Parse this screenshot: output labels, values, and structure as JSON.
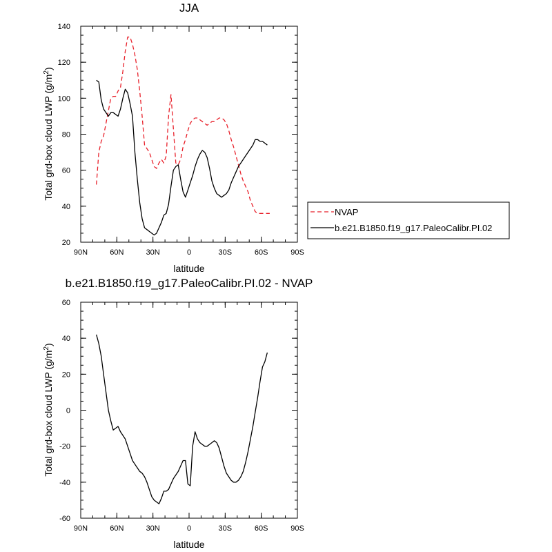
{
  "chart_data": [
    {
      "type": "line",
      "title": "JJA",
      "xlabel": "latitude",
      "ylabel": "Total grd-box cloud LWP (g/m²)",
      "ylabel_parts": {
        "pre": "Total grd-box cloud LWP (g/m",
        "sup": "2",
        "post": ")"
      },
      "xlim": [
        90,
        -90
      ],
      "ylim": [
        20,
        140
      ],
      "xticks": [
        90,
        60,
        30,
        0,
        -30,
        -60,
        -90
      ],
      "xtick_labels": [
        "90N",
        "60N",
        "30N",
        "0",
        "30S",
        "60S",
        "90S"
      ],
      "yticks": [
        20,
        40,
        60,
        80,
        100,
        120,
        140
      ],
      "ytick_labels": [
        "20",
        "40",
        "60",
        "80",
        "100",
        "120",
        "140"
      ],
      "legend_position": "right",
      "series": [
        {
          "name": "NVAP",
          "color": "#e8202a",
          "dash": "dashed",
          "x": [
            77,
            75,
            73,
            71,
            69,
            67,
            65,
            63,
            61,
            59,
            57,
            55,
            53,
            51,
            49,
            47,
            45,
            43,
            41,
            39,
            37,
            35,
            33,
            31,
            29,
            27,
            25,
            23,
            21,
            19,
            17,
            15,
            13,
            11,
            9,
            7,
            5,
            3,
            1,
            -1,
            -3,
            -5,
            -7,
            -9,
            -11,
            -13,
            -15,
            -17,
            -19,
            -21,
            -23,
            -25,
            -27,
            -29,
            -31,
            -33,
            -35,
            -37,
            -39,
            -41,
            -43,
            -45,
            -47,
            -49,
            -51,
            -53,
            -55,
            -57,
            -59,
            -61,
            -63,
            -65,
            -67
          ],
          "y": [
            52,
            70,
            76,
            79,
            86,
            93,
            100,
            101,
            101,
            104,
            106,
            115,
            126,
            134,
            134,
            130,
            124,
            116,
            104,
            90,
            74,
            72,
            70,
            66,
            62,
            61,
            64,
            66,
            64,
            68,
            90,
            102,
            83,
            64,
            63,
            66,
            73,
            77,
            82,
            86,
            88,
            89,
            89,
            88,
            87,
            86,
            85,
            86,
            87,
            87,
            88,
            89,
            89,
            88,
            86,
            82,
            77,
            73,
            68,
            63,
            58,
            54,
            51,
            48,
            43,
            40,
            37,
            36,
            36,
            36,
            36,
            36,
            36
          ]
        },
        {
          "name": "b.e21.B1850.f19_g17.PaleoCalibr.PI.02",
          "color": "#000000",
          "dash": "solid",
          "x": [
            77,
            75,
            73,
            71,
            69,
            67,
            65,
            63,
            61,
            59,
            57,
            55,
            53,
            51,
            49,
            47,
            45,
            43,
            41,
            39,
            37,
            35,
            33,
            31,
            29,
            27,
            25,
            23,
            21,
            19,
            17,
            15,
            13,
            11,
            9,
            7,
            5,
            3,
            1,
            -1,
            -3,
            -5,
            -7,
            -9,
            -11,
            -13,
            -15,
            -17,
            -19,
            -21,
            -23,
            -25,
            -27,
            -29,
            -31,
            -33,
            -35,
            -37,
            -39,
            -41,
            -43,
            -45,
            -47,
            -49,
            -51,
            -53,
            -55,
            -57,
            -59,
            -61,
            -63,
            -65
          ],
          "y": [
            110,
            109,
            99,
            94,
            92,
            90,
            92,
            92,
            91,
            90,
            94,
            100,
            105,
            103,
            97,
            90,
            70,
            55,
            42,
            33,
            28,
            27,
            26,
            25,
            24,
            25,
            28,
            31,
            35,
            36,
            41,
            51,
            60,
            62,
            63,
            55,
            48,
            45,
            49,
            53,
            57,
            62,
            66,
            69,
            71,
            70,
            67,
            61,
            54,
            50,
            47,
            46,
            45,
            46,
            47,
            49,
            53,
            56,
            59,
            62,
            64,
            66,
            68,
            70,
            72,
            74,
            77,
            77,
            76,
            76,
            75,
            74
          ]
        }
      ]
    },
    {
      "type": "line",
      "title": "b.e21.B1850.f19_g17.PaleoCalibr.PI.02 - NVAP",
      "xlabel": "latitude",
      "ylabel": "Total grd-box cloud LWP (g/m²)",
      "ylabel_parts": {
        "pre": "Total grd-box cloud LWP (g/m",
        "sup": "2",
        "post": ")"
      },
      "xlim": [
        90,
        -90
      ],
      "ylim": [
        -60,
        60
      ],
      "xticks": [
        90,
        60,
        30,
        0,
        -30,
        -60,
        -90
      ],
      "xtick_labels": [
        "90N",
        "60N",
        "30N",
        "0",
        "30S",
        "60S",
        "90S"
      ],
      "yticks": [
        -60,
        -40,
        -20,
        0,
        20,
        40,
        60
      ],
      "ytick_labels": [
        "-60",
        "-40",
        "-20",
        "0",
        "20",
        "40",
        "60"
      ],
      "series": [
        {
          "color": "#000000",
          "dash": "solid",
          "x": [
            77,
            75,
            73,
            71,
            69,
            67,
            65,
            63,
            61,
            59,
            57,
            55,
            53,
            51,
            49,
            47,
            45,
            43,
            41,
            39,
            37,
            35,
            33,
            31,
            29,
            27,
            25,
            23,
            21,
            19,
            17,
            15,
            13,
            11,
            9,
            7,
            5,
            3,
            1,
            -1,
            -3,
            -5,
            -7,
            -9,
            -11,
            -13,
            -15,
            -17,
            -19,
            -21,
            -23,
            -25,
            -27,
            -29,
            -31,
            -33,
            -35,
            -37,
            -39,
            -41,
            -43,
            -45,
            -47,
            -49,
            -51,
            -53,
            -55,
            -57,
            -59,
            -61,
            -63,
            -65
          ],
          "y": [
            42,
            37,
            30,
            20,
            10,
            0,
            -6,
            -11,
            -10,
            -9,
            -12,
            -14,
            -16,
            -20,
            -24,
            -28,
            -30,
            -32,
            -34,
            -35,
            -37,
            -40,
            -44,
            -48,
            -50,
            -51,
            -52,
            -49,
            -45,
            -45,
            -44,
            -41,
            -38,
            -36,
            -34,
            -31,
            -28,
            -28,
            -41,
            -42,
            -20,
            -12,
            -16,
            -18,
            -19,
            -20,
            -20,
            -19,
            -18,
            -17,
            -18,
            -21,
            -26,
            -31,
            -35,
            -37,
            -39,
            -40,
            -40,
            -39,
            -37,
            -34,
            -29,
            -23,
            -16,
            -9,
            -1,
            7,
            16,
            24,
            27,
            32
          ]
        }
      ]
    }
  ]
}
